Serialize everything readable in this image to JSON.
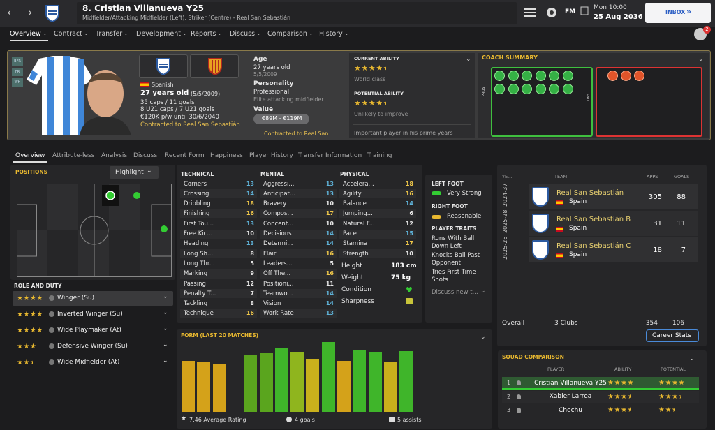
{
  "header": {
    "player_name": "8. Cristian Villanueva Y25",
    "subtitle": "Midfielder/Attacking Midfielder (Left), Striker (Centre) - Real San Sebastián",
    "time": "Mon 10:00",
    "date": "25 Aug 2036",
    "inbox": "INBOX",
    "fm": "FM",
    "badge": "2"
  },
  "nav": [
    "Overview",
    "Contract",
    "Transfer",
    "Development",
    "Reports",
    "Discuss",
    "Comparison",
    "History"
  ],
  "profile": {
    "side_tabs": [
      "BFR",
      "FR",
      "WH"
    ],
    "nationality": "Spanish",
    "age": "27 years old",
    "dob": "(5/5/2009)",
    "caps": "35 caps / 11 goals",
    "u21": "8 U21 caps / 7 U21 goals",
    "wage": "€120K p/w until 30/6/2040",
    "contract": "Contracted to Real San Sebastián"
  },
  "info": {
    "age_label": "Age",
    "age": "27 years old",
    "dob": "5/5/2009",
    "personality_label": "Personality",
    "personality": "Professional",
    "personality_note": "Elite attacking midfielder",
    "value_label": "Value",
    "value": "€89M - €119M",
    "contract": "Contracted to Real San..."
  },
  "ability": {
    "current_label": "CURRENT ABILITY",
    "current_stars": 4.5,
    "current_text": "World class",
    "potential_label": "POTENTIAL ABILITY",
    "potential_stars": 4.5,
    "potential_text": "Unlikely to improve",
    "note": "Important player in his prime years"
  },
  "coach": {
    "title": "COACH SUMMARY",
    "pros": "PROS",
    "cons": "CONS"
  },
  "subtabs": [
    "Overview",
    "Attribute-less",
    "Analysis",
    "Discuss",
    "Recent Form",
    "Happiness",
    "Player History",
    "Transfer Information",
    "Training"
  ],
  "positions": {
    "title": "POSITIONS",
    "highlight": "Highlight"
  },
  "roles": {
    "title": "ROLE AND DUTY",
    "items": [
      {
        "name": "Winger (Su)",
        "stars": 4
      },
      {
        "name": "Inverted Winger (Su)",
        "stars": 4
      },
      {
        "name": "Wide Playmaker (At)",
        "stars": 4
      },
      {
        "name": "Defensive Winger (Su)",
        "stars": 3
      },
      {
        "name": "Wide Midfielder (At)",
        "stars": 2.5
      }
    ]
  },
  "attributes": {
    "technical_label": "TECHNICAL",
    "mental_label": "MENTAL",
    "physical_label": "PHYSICAL",
    "technical": [
      {
        "name": "Corners",
        "value": 13
      },
      {
        "name": "Crossing",
        "value": 14
      },
      {
        "name": "Dribbling",
        "value": 18
      },
      {
        "name": "Finishing",
        "value": 16
      },
      {
        "name": "First Tou...",
        "value": 13
      },
      {
        "name": "Free Kic...",
        "value": 10
      },
      {
        "name": "Heading",
        "value": 13
      },
      {
        "name": "Long Sh...",
        "value": 8
      },
      {
        "name": "Long Thr...",
        "value": 5
      },
      {
        "name": "Marking",
        "value": 9
      },
      {
        "name": "Passing",
        "value": 12
      },
      {
        "name": "Penalty T...",
        "value": 7
      },
      {
        "name": "Tackling",
        "value": 8
      },
      {
        "name": "Technique",
        "value": 16
      }
    ],
    "mental": [
      {
        "name": "Aggressi...",
        "value": 13
      },
      {
        "name": "Anticipat...",
        "value": 13
      },
      {
        "name": "Bravery",
        "value": 10
      },
      {
        "name": "Compos...",
        "value": 17
      },
      {
        "name": "Concent...",
        "value": 10
      },
      {
        "name": "Decisions",
        "value": 14
      },
      {
        "name": "Determi...",
        "value": 14
      },
      {
        "name": "Flair",
        "value": 16
      },
      {
        "name": "Leaders...",
        "value": 5
      },
      {
        "name": "Off The...",
        "value": 16
      },
      {
        "name": "Positioni...",
        "value": 11
      },
      {
        "name": "Teamwo...",
        "value": 14
      },
      {
        "name": "Vision",
        "value": 14
      },
      {
        "name": "Work Rate",
        "value": 13
      }
    ],
    "physical": [
      {
        "name": "Accelera...",
        "value": 18
      },
      {
        "name": "Agility",
        "value": 16
      },
      {
        "name": "Balance",
        "value": 14
      },
      {
        "name": "Jumping...",
        "value": 6
      },
      {
        "name": "Natural F...",
        "value": 12
      },
      {
        "name": "Pace",
        "value": 15
      },
      {
        "name": "Stamina",
        "value": 17
      },
      {
        "name": "Strength",
        "value": 10
      }
    ],
    "extra": [
      {
        "name": "Height",
        "value": "183 cm"
      },
      {
        "name": "Weight",
        "value": "75 kg"
      },
      {
        "name": "Condition"
      },
      {
        "name": "Sharpness"
      }
    ]
  },
  "feet": {
    "left_label": "LEFT FOOT",
    "left": "Very Strong",
    "right_label": "RIGHT FOOT",
    "right": "Reasonable",
    "traits_label": "PLAYER TRAITS",
    "traits": [
      "Runs With Ball Down Left",
      "Knocks Ball Past Opponent",
      "Tries First Time Shots"
    ],
    "more": "Discuss new t..."
  },
  "history": {
    "headers": [
      "YE...",
      "TEAM",
      "APPS",
      "GOALS"
    ],
    "rows": [
      {
        "year": "2024-37",
        "team": "Real San Sebastián",
        "nation": "Spain",
        "apps": 305,
        "goals": 88
      },
      {
        "year": "2025-28",
        "team": "Real San Sebastián B",
        "nation": "Spain",
        "apps": 31,
        "goals": 11
      },
      {
        "year": "2025-26",
        "team": "Real San Sebastián C",
        "nation": "Spain",
        "apps": 18,
        "goals": 7
      }
    ],
    "overall": "Overall",
    "clubs": "3 Clubs",
    "apps": 354,
    "goals": 106,
    "button": "Career Stats"
  },
  "chart_data": {
    "type": "bar",
    "title": "FORM (LAST 20 MATCHES)",
    "values": [
      6.8,
      6.6,
      6.3,
      null,
      7.5,
      7.9,
      8.5,
      8.0,
      7.0,
      9.3,
      6.8,
      8.3,
      8.0,
      6.7,
      8.1
    ],
    "colors": [
      "#d4a21a",
      "#d4a21a",
      "#d4a21a",
      null,
      "#5aa51e",
      "#5aa51e",
      "#3fb52a",
      "#8fb51e",
      "#c9b01c",
      "#3fb52a",
      "#d4a21a",
      "#3fb52a",
      "#3fb52a",
      "#c9b01c",
      "#3fb52a"
    ],
    "footer": [
      "7.46 Average Rating",
      "4 goals",
      "5 assists"
    ]
  },
  "squad": {
    "title": "SQUAD COMPARISON",
    "headers": [
      "PLAYER",
      "ABILITY",
      "POTENTIAL"
    ],
    "rows": [
      {
        "rank": "1",
        "name": "Cristian Villanueva Y25",
        "ability": 4,
        "potential": 4
      },
      {
        "rank": "2",
        "name": "Xabier Larrea",
        "ability": 3.5,
        "potential": 3.5
      },
      {
        "rank": "3",
        "name": "Chechu",
        "ability": 3.5,
        "potential": 2.5
      }
    ]
  }
}
